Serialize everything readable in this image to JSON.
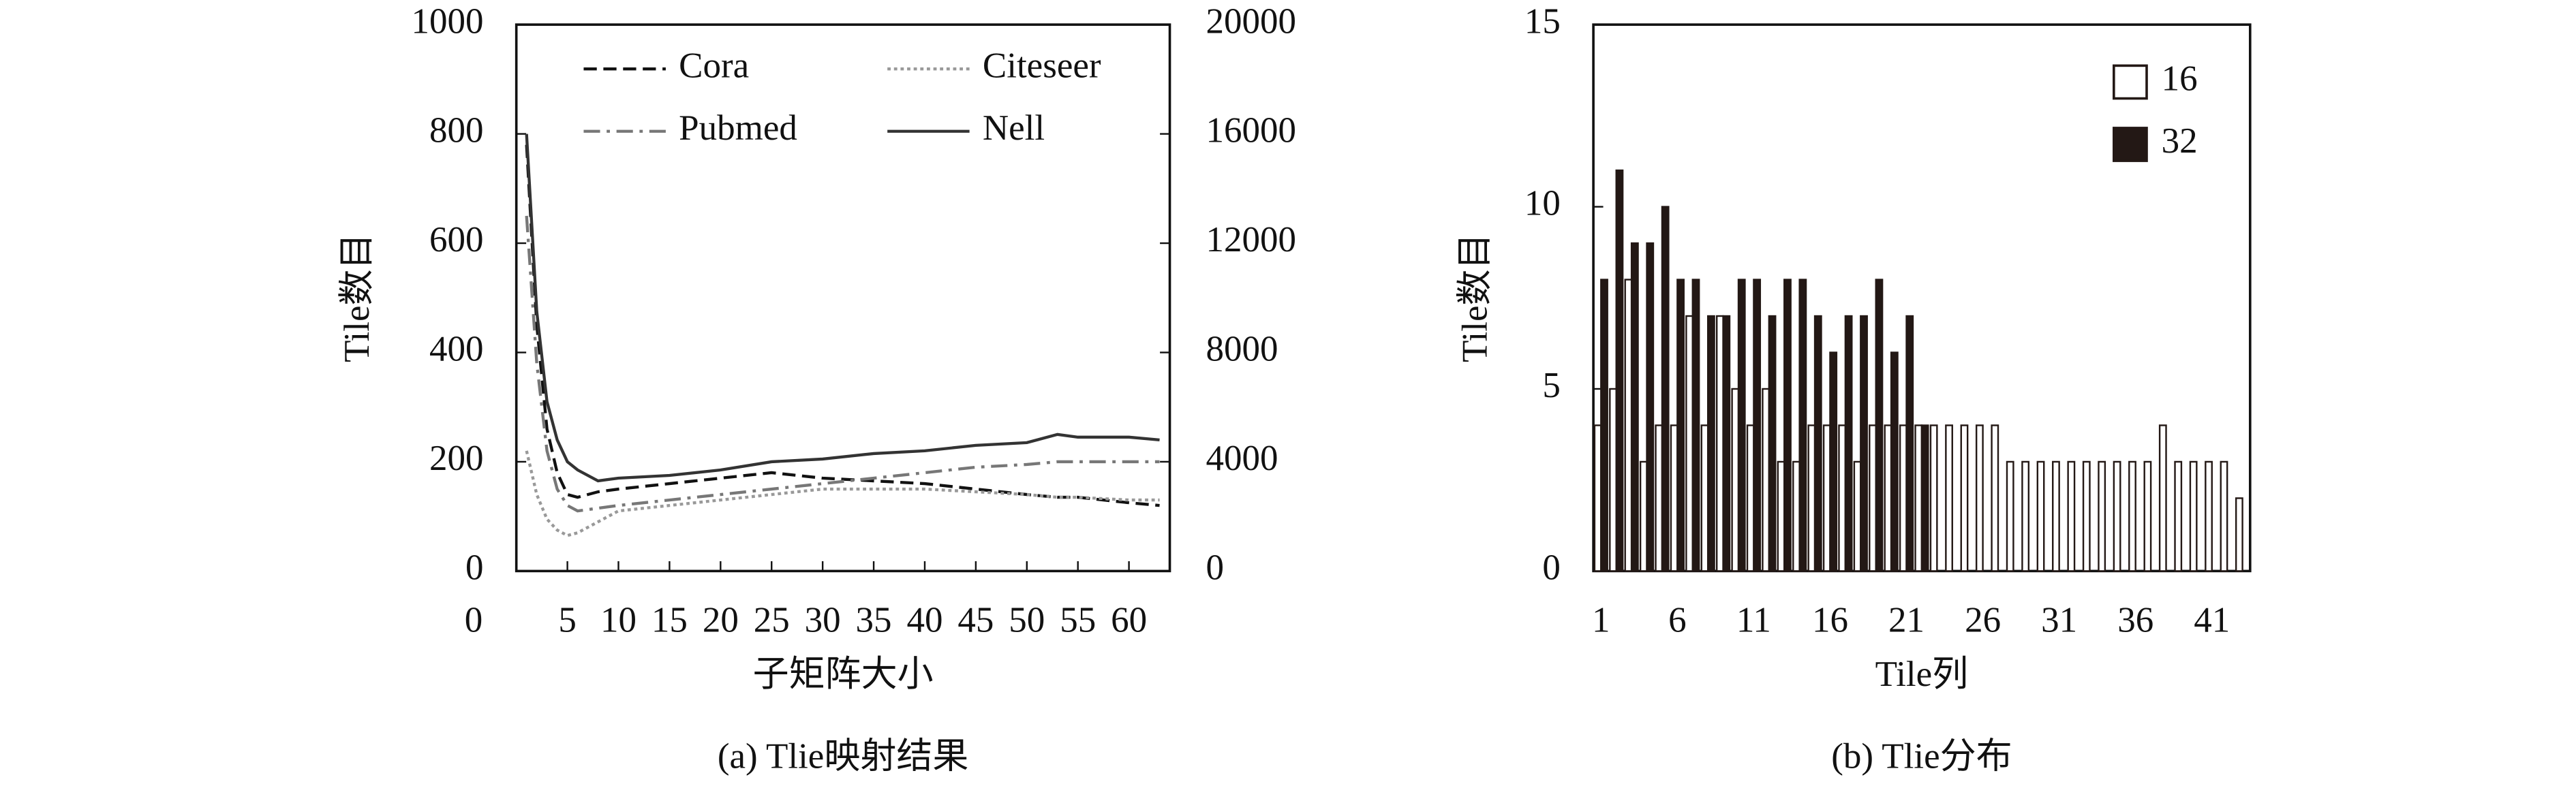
{
  "chart_data": [
    {
      "type": "line",
      "caption": "(a) Tlie映射结果",
      "xlabel": "子矩阵大小",
      "ylabel": "Tile数目",
      "x": [
        1,
        2,
        3,
        4,
        5,
        6,
        8,
        10,
        15,
        20,
        25,
        30,
        35,
        40,
        45,
        50,
        53,
        55,
        60,
        63
      ],
      "xlim": [
        0,
        64
      ],
      "xticks": [
        0,
        5,
        10,
        15,
        20,
        25,
        30,
        35,
        40,
        45,
        50,
        55,
        60
      ],
      "ylim": [
        0,
        1000
      ],
      "yticks": [
        0,
        200,
        400,
        600,
        800,
        1000
      ],
      "y2lim": [
        0,
        20000
      ],
      "y2ticks": [
        0,
        4000,
        8000,
        12000,
        16000,
        20000
      ],
      "legend": "top",
      "series": [
        {
          "name": "Cora",
          "color": "#111111",
          "style": "dashed",
          "values": [
            780,
            450,
            260,
            180,
            140,
            135,
            145,
            150,
            160,
            170,
            180,
            170,
            165,
            160,
            150,
            140,
            135,
            135,
            125,
            120
          ]
        },
        {
          "name": "Citeseer",
          "color": "#999999",
          "style": "dotted",
          "values": [
            220,
            140,
            95,
            75,
            65,
            70,
            90,
            110,
            120,
            130,
            140,
            150,
            150,
            150,
            145,
            140,
            135,
            135,
            130,
            130
          ]
        },
        {
          "name": "Pubmed",
          "color": "#777777",
          "style": "dashdot",
          "values": [
            650,
            380,
            220,
            150,
            120,
            110,
            115,
            120,
            130,
            140,
            150,
            160,
            170,
            180,
            190,
            195,
            200,
            200,
            200,
            200
          ]
        },
        {
          "name": "Nell",
          "color": "#333333",
          "style": "solid",
          "axis": "y2",
          "values": [
            16000,
            9500,
            6200,
            4800,
            4000,
            3700,
            3300,
            3400,
            3500,
            3700,
            4000,
            4100,
            4300,
            4400,
            4600,
            4700,
            5000,
            4900,
            4900,
            4800
          ]
        }
      ]
    },
    {
      "type": "bar",
      "caption": "(b) Tlie分布",
      "xlabel": "Tile列",
      "ylabel": "Tile数目",
      "categories": [
        1,
        null,
        null,
        null,
        null,
        6,
        null,
        null,
        null,
        null,
        11,
        null,
        null,
        null,
        null,
        16,
        null,
        null,
        null,
        null,
        21,
        null,
        null,
        null,
        null,
        26,
        null,
        null,
        null,
        null,
        31,
        null,
        null,
        null,
        null,
        36,
        null,
        null,
        null,
        null,
        41,
        null,
        null
      ],
      "ylim": [
        0,
        15
      ],
      "yticks": [
        0,
        5,
        10,
        15
      ],
      "legend": "upper right",
      "series": [
        {
          "name": "16",
          "color": "#ffffff",
          "values": [
            4,
            5,
            8,
            3,
            4,
            4,
            7,
            4,
            7,
            5,
            4,
            5,
            3,
            3,
            4,
            4,
            4,
            3,
            4,
            4,
            4,
            4,
            4,
            4,
            4,
            4,
            4,
            3,
            3,
            3,
            3,
            3,
            3,
            3,
            3,
            3,
            3,
            4,
            3,
            3,
            3,
            3,
            2
          ]
        },
        {
          "name": "32",
          "color": "#231815",
          "values": [
            8,
            11,
            9,
            9,
            10,
            8,
            8,
            7,
            7,
            8,
            8,
            7,
            8,
            8,
            7,
            6,
            7,
            7,
            8,
            6,
            7,
            4,
            null,
            null,
            null,
            null,
            null,
            null,
            null,
            null,
            null,
            null,
            null,
            null,
            null,
            null,
            null,
            null,
            null,
            null,
            null,
            null,
            null
          ]
        }
      ]
    }
  ]
}
